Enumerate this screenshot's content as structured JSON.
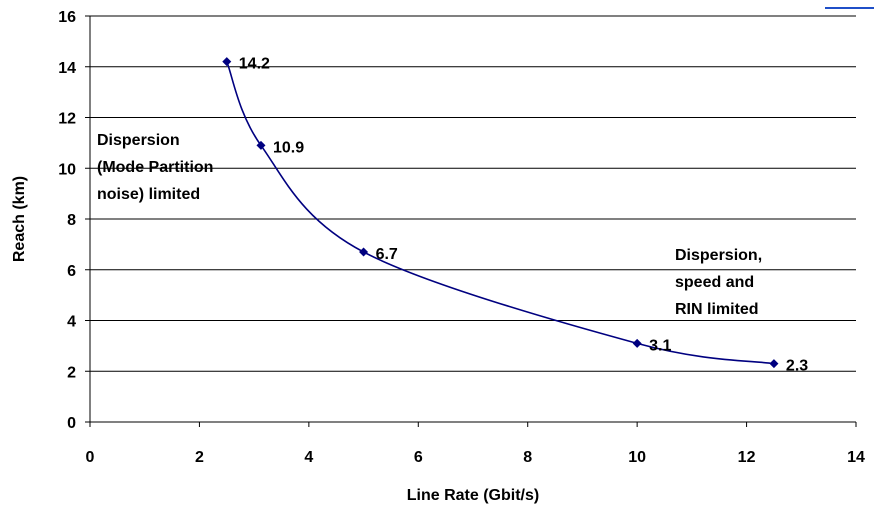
{
  "chart_data": {
    "type": "line",
    "title": "",
    "xlabel": "Line Rate (Gbit/s)",
    "ylabel": "Reach (km)",
    "xlim": [
      0,
      14
    ],
    "ylim": [
      0,
      16
    ],
    "xticks": [
      "0",
      "2",
      "4",
      "6",
      "8",
      "10",
      "12",
      "14"
    ],
    "yticks": [
      "0",
      "2",
      "4",
      "6",
      "8",
      "10",
      "12",
      "14",
      "16"
    ],
    "grid": "horizontal",
    "legend": "none",
    "series": [
      {
        "x": [
          2.5,
          3.125,
          5.0,
          10.0,
          12.5
        ],
        "y": [
          14.2,
          10.9,
          6.7,
          3.1,
          2.3
        ],
        "labels": [
          "14.2",
          "10.9",
          "6.7",
          "3.1",
          "2.3"
        ],
        "color": "#000080"
      }
    ],
    "annotations": [
      {
        "lines": [
          "Dispersion",
          "(Mode Partition",
          "noise) limited"
        ]
      },
      {
        "lines": [
          "Dispersion,",
          "speed and",
          "RIN limited"
        ]
      }
    ]
  }
}
